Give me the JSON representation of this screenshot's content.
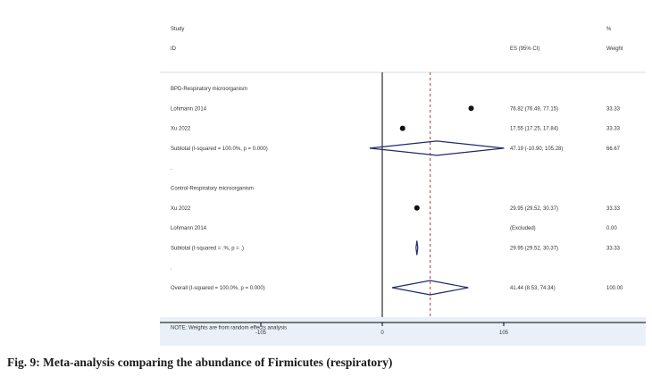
{
  "chart_data": {
    "type": "forest",
    "header": {
      "study_line1": "Study",
      "study_line2": "ID",
      "es_label": "ES (95% CI)",
      "weight_line1": "%",
      "weight_line2": "Weight"
    },
    "rows": [
      {
        "kind": "group",
        "label": "BPD-Respiratory microorganism"
      },
      {
        "kind": "study",
        "label": "Lohmann 2014",
        "es": 76.82,
        "lo": 76.49,
        "hi": 77.15,
        "ci_text": "76.82 (76.49, 77.15)",
        "weight_text": "33.33"
      },
      {
        "kind": "study",
        "label": "Xu 2022",
        "es": 17.55,
        "lo": 17.25,
        "hi": 17.84,
        "ci_text": "17.55 (17.25, 17.84)",
        "weight_text": "33.33"
      },
      {
        "kind": "subtotal",
        "label": "Subtotal (I-squared = 100.0%, p = 0.000)",
        "es": 47.19,
        "lo": -10.9,
        "hi": 105.28,
        "ci_text": "47.19 (-10.90, 105.28)",
        "weight_text": "66.67"
      },
      {
        "kind": "spacer",
        "label": "."
      },
      {
        "kind": "group",
        "label": "Control-Respiratory microorganism"
      },
      {
        "kind": "study",
        "label": "Xu 2022",
        "es": 29.95,
        "lo": 29.52,
        "hi": 30.37,
        "ci_text": "29.95 (29.52, 30.37)",
        "weight_text": "33.33"
      },
      {
        "kind": "excluded",
        "label": "Lohmann 2014",
        "ci_text": "(Excluded)",
        "weight_text": "0.00"
      },
      {
        "kind": "subtotal",
        "label": "Subtotal (I-squared = .%, p = .)",
        "es": 29.95,
        "lo": 29.52,
        "hi": 30.37,
        "ci_text": "29.95 (29.52, 30.37)",
        "weight_text": "33.33"
      },
      {
        "kind": "spacer",
        "label": "."
      },
      {
        "kind": "overall",
        "label": "Overall (I-squared = 100.0%, p = 0.000)",
        "es": 41.44,
        "lo": 8.53,
        "hi": 74.34,
        "ci_text": "41.44 (8.53, 74.34)",
        "weight_text": "100.00"
      },
      {
        "kind": "spacer",
        "label": ""
      },
      {
        "kind": "note",
        "label": "NOTE: Weights are from random effects analysis"
      }
    ],
    "x_ticks": [
      -105,
      0,
      105
    ],
    "x_tick_labels": [
      "-105",
      "0",
      "105"
    ],
    "null_line": 0,
    "overall_line": 41.44,
    "colors": {
      "diamond": "#1f2a6e",
      "overall_line": "#b33a3a",
      "marker": "#111111"
    }
  },
  "caption": "Fig. 9: Meta-analysis comparing the abundance of Firmicutes (respiratory)"
}
